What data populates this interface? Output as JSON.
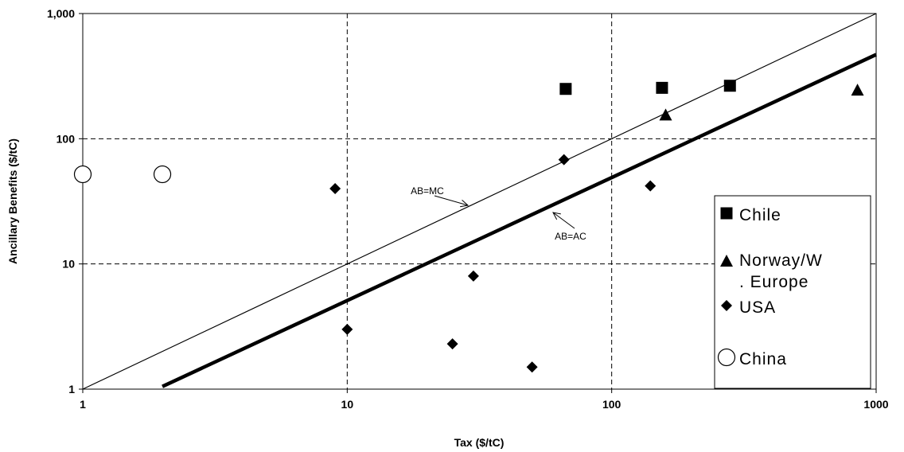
{
  "chart_data": {
    "type": "scatter",
    "xlabel": "Tax ($/tC)",
    "ylabel": "Ancillary Benefits ($/tC)",
    "x_scale": "log",
    "y_scale": "log",
    "xlim": [
      1,
      1000
    ],
    "ylim": [
      1,
      1000
    ],
    "x_ticks": [
      1,
      10,
      100,
      1000
    ],
    "x_tick_labels": [
      "1",
      "10",
      "100",
      "1000"
    ],
    "y_ticks": [
      1,
      10,
      100,
      1000
    ],
    "y_tick_labels": [
      "1",
      "10",
      "100",
      "1,000"
    ],
    "grid": "dashed",
    "legend_position": "bottom-right",
    "series": [
      {
        "name": "Chile",
        "marker": "square",
        "points": [
          [
            67,
            250
          ],
          [
            155,
            255
          ],
          [
            280,
            265
          ]
        ]
      },
      {
        "name": "Norway/W\n. Europe",
        "marker": "triangle",
        "points": [
          [
            160,
            155
          ],
          [
            850,
            245
          ]
        ]
      },
      {
        "name": "USA",
        "marker": "diamond",
        "points": [
          [
            9,
            40
          ],
          [
            10,
            3
          ],
          [
            25,
            2.3
          ],
          [
            30,
            8
          ],
          [
            50,
            1.5
          ],
          [
            66,
            68
          ],
          [
            140,
            42
          ]
        ]
      },
      {
        "name": "China",
        "marker": "open-circle",
        "points": [
          [
            1,
            52
          ],
          [
            2,
            52
          ]
        ]
      }
    ],
    "reference_lines": [
      {
        "label": "AB=MC",
        "from": [
          1,
          1
        ],
        "to": [
          1000,
          1000
        ],
        "style": "thin"
      },
      {
        "label": "AB=AC",
        "from": [
          2,
          1.05
        ],
        "to": [
          1000,
          470
        ],
        "style": "thick"
      }
    ]
  }
}
